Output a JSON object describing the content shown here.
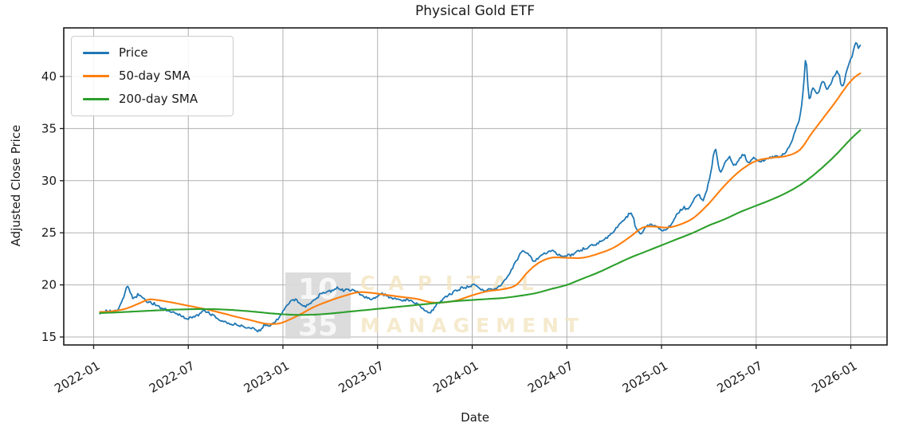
{
  "chart_data": {
    "type": "line",
    "title": "Physical Gold ETF",
    "xlabel": "Date",
    "ylabel": "Adjusted Close Price",
    "grid": true,
    "legend_position": "upper left",
    "ylim": [
      14.3,
      44.7
    ],
    "x_unit": "months_since_2022-01",
    "x_ticks": [
      {
        "label": "2022-01",
        "m": 0
      },
      {
        "label": "2022-07",
        "m": 6
      },
      {
        "label": "2023-01",
        "m": 12
      },
      {
        "label": "2023-07",
        "m": 18
      },
      {
        "label": "2024-01",
        "m": 24
      },
      {
        "label": "2024-07",
        "m": 30
      },
      {
        "label": "2025-01",
        "m": 36
      },
      {
        "label": "2025-07",
        "m": 42
      },
      {
        "label": "2026-01",
        "m": 48
      }
    ],
    "y_ticks": [
      15,
      20,
      25,
      30,
      35,
      40
    ],
    "series": [
      {
        "name": "Price",
        "color": "#1f77b4",
        "style": "jagged",
        "points": [
          [
            0.4,
            17.35
          ],
          [
            0.8,
            17.5
          ],
          [
            1.2,
            17.45
          ],
          [
            1.6,
            17.8
          ],
          [
            2.0,
            19.3
          ],
          [
            2.15,
            19.9
          ],
          [
            2.5,
            18.7
          ],
          [
            2.9,
            19.1
          ],
          [
            3.3,
            18.5
          ],
          [
            3.8,
            18.2
          ],
          [
            4.3,
            17.8
          ],
          [
            4.8,
            17.5
          ],
          [
            5.3,
            17.2
          ],
          [
            5.8,
            16.9
          ],
          [
            6.1,
            16.8
          ],
          [
            6.6,
            17.1
          ],
          [
            7.0,
            17.5
          ],
          [
            7.4,
            17.2
          ],
          [
            8.0,
            16.7
          ],
          [
            8.5,
            16.3
          ],
          [
            9.0,
            16.2
          ],
          [
            9.5,
            16.0
          ],
          [
            10.0,
            15.85
          ],
          [
            10.5,
            15.6
          ],
          [
            10.9,
            16.25
          ],
          [
            11.2,
            16.1
          ],
          [
            11.6,
            16.6
          ],
          [
            12.0,
            17.4
          ],
          [
            12.4,
            18.3
          ],
          [
            12.7,
            18.6
          ],
          [
            13.1,
            18.2
          ],
          [
            13.5,
            18.0
          ],
          [
            14.0,
            18.6
          ],
          [
            14.5,
            19.2
          ],
          [
            15.0,
            19.4
          ],
          [
            15.4,
            19.7
          ],
          [
            15.8,
            19.5
          ],
          [
            16.3,
            19.5
          ],
          [
            16.8,
            19.2
          ],
          [
            17.3,
            18.8
          ],
          [
            17.8,
            18.7
          ],
          [
            18.3,
            19.1
          ],
          [
            18.8,
            18.8
          ],
          [
            19.4,
            18.6
          ],
          [
            20.0,
            18.5
          ],
          [
            20.5,
            18.2
          ],
          [
            20.9,
            17.7
          ],
          [
            21.3,
            17.35
          ],
          [
            21.7,
            18.0
          ],
          [
            22.2,
            18.7
          ],
          [
            22.7,
            19.2
          ],
          [
            23.2,
            19.6
          ],
          [
            23.7,
            19.8
          ],
          [
            24.1,
            20.0
          ],
          [
            24.5,
            19.6
          ],
          [
            25.0,
            19.5
          ],
          [
            25.5,
            19.7
          ],
          [
            25.9,
            20.2
          ],
          [
            26.3,
            21.0
          ],
          [
            26.8,
            22.3
          ],
          [
            27.2,
            23.3
          ],
          [
            27.6,
            22.8
          ],
          [
            27.9,
            22.3
          ],
          [
            28.3,
            22.7
          ],
          [
            28.7,
            23.1
          ],
          [
            29.1,
            23.3
          ],
          [
            29.5,
            22.9
          ],
          [
            29.9,
            22.8
          ],
          [
            30.3,
            22.9
          ],
          [
            30.8,
            23.3
          ],
          [
            31.3,
            23.6
          ],
          [
            31.8,
            23.9
          ],
          [
            32.3,
            24.3
          ],
          [
            32.8,
            24.9
          ],
          [
            33.3,
            25.7
          ],
          [
            33.8,
            26.5
          ],
          [
            34.1,
            26.9
          ],
          [
            34.4,
            25.4
          ],
          [
            34.7,
            25.0
          ],
          [
            35.1,
            25.6
          ],
          [
            35.5,
            25.7
          ],
          [
            35.9,
            25.4
          ],
          [
            36.2,
            25.2
          ],
          [
            36.6,
            25.8
          ],
          [
            37.0,
            26.8
          ],
          [
            37.4,
            27.4
          ],
          [
            37.7,
            27.2
          ],
          [
            38.0,
            28.0
          ],
          [
            38.3,
            28.7
          ],
          [
            38.6,
            28.1
          ],
          [
            38.9,
            29.3
          ],
          [
            39.2,
            31.5
          ],
          [
            39.4,
            33.0
          ],
          [
            39.7,
            31.0
          ],
          [
            40.0,
            31.6
          ],
          [
            40.3,
            32.3
          ],
          [
            40.6,
            31.5
          ],
          [
            40.9,
            32.0
          ],
          [
            41.2,
            32.5
          ],
          [
            41.5,
            31.8
          ],
          [
            41.8,
            32.2
          ],
          [
            42.1,
            31.9
          ],
          [
            42.5,
            32.0
          ],
          [
            42.9,
            32.2
          ],
          [
            43.3,
            32.3
          ],
          [
            43.7,
            32.5
          ],
          [
            44.1,
            33.3
          ],
          [
            44.5,
            34.8
          ],
          [
            44.8,
            36.3
          ],
          [
            45.0,
            39.0
          ],
          [
            45.15,
            41.8
          ],
          [
            45.35,
            38.0
          ],
          [
            45.6,
            38.9
          ],
          [
            45.9,
            38.3
          ],
          [
            46.2,
            39.6
          ],
          [
            46.5,
            38.8
          ],
          [
            46.9,
            39.9
          ],
          [
            47.2,
            40.4
          ],
          [
            47.45,
            39.1
          ],
          [
            47.8,
            40.8
          ],
          [
            48.1,
            42.1
          ],
          [
            48.35,
            43.4
          ],
          [
            48.5,
            42.6
          ],
          [
            48.6,
            43.0
          ]
        ]
      },
      {
        "name": "50-day SMA",
        "color": "#ff7f0e",
        "style": "smooth",
        "points": [
          [
            0.4,
            17.4
          ],
          [
            1,
            17.45
          ],
          [
            2,
            17.7
          ],
          [
            3,
            18.3
          ],
          [
            3.5,
            18.6
          ],
          [
            4,
            18.55
          ],
          [
            5,
            18.3
          ],
          [
            6,
            18.0
          ],
          [
            7,
            17.7
          ],
          [
            8,
            17.35
          ],
          [
            9,
            16.95
          ],
          [
            10,
            16.6
          ],
          [
            10.8,
            16.3
          ],
          [
            11.5,
            16.25
          ],
          [
            12,
            16.4
          ],
          [
            13,
            17.1
          ],
          [
            14,
            17.9
          ],
          [
            15,
            18.5
          ],
          [
            16,
            19.0
          ],
          [
            16.8,
            19.3
          ],
          [
            17.5,
            19.25
          ],
          [
            18.5,
            19.05
          ],
          [
            19.5,
            18.85
          ],
          [
            20.5,
            18.65
          ],
          [
            21.3,
            18.35
          ],
          [
            22,
            18.3
          ],
          [
            23,
            18.5
          ],
          [
            24,
            19.0
          ],
          [
            25,
            19.4
          ],
          [
            26,
            19.6
          ],
          [
            26.8,
            20.0
          ],
          [
            27.5,
            21.2
          ],
          [
            28.2,
            22.1
          ],
          [
            29,
            22.6
          ],
          [
            30,
            22.6
          ],
          [
            31,
            22.6
          ],
          [
            32,
            23.0
          ],
          [
            33,
            23.6
          ],
          [
            34,
            24.6
          ],
          [
            34.8,
            25.5
          ],
          [
            35.5,
            25.6
          ],
          [
            36.3,
            25.5
          ],
          [
            37,
            25.7
          ],
          [
            38,
            26.4
          ],
          [
            39,
            27.8
          ],
          [
            39.8,
            29.2
          ],
          [
            40.5,
            30.3
          ],
          [
            41.2,
            31.2
          ],
          [
            42,
            31.9
          ],
          [
            43,
            32.2
          ],
          [
            44,
            32.4
          ],
          [
            44.8,
            33.0
          ],
          [
            45.5,
            34.5
          ],
          [
            46.2,
            35.9
          ],
          [
            47,
            37.5
          ],
          [
            47.8,
            39.2
          ],
          [
            48.3,
            40.0
          ],
          [
            48.6,
            40.3
          ]
        ]
      },
      {
        "name": "200-day SMA",
        "color": "#2ca02c",
        "style": "smooth",
        "points": [
          [
            0.4,
            17.3
          ],
          [
            1,
            17.33
          ],
          [
            2,
            17.4
          ],
          [
            3,
            17.48
          ],
          [
            4,
            17.55
          ],
          [
            5,
            17.62
          ],
          [
            6,
            17.66
          ],
          [
            7,
            17.68
          ],
          [
            8,
            17.65
          ],
          [
            9,
            17.57
          ],
          [
            10,
            17.45
          ],
          [
            11,
            17.3
          ],
          [
            12,
            17.18
          ],
          [
            13,
            17.12
          ],
          [
            14,
            17.15
          ],
          [
            15,
            17.25
          ],
          [
            16,
            17.4
          ],
          [
            17,
            17.55
          ],
          [
            18,
            17.7
          ],
          [
            19,
            17.85
          ],
          [
            20,
            18.0
          ],
          [
            21,
            18.15
          ],
          [
            22,
            18.3
          ],
          [
            23,
            18.45
          ],
          [
            24,
            18.55
          ],
          [
            25,
            18.65
          ],
          [
            26,
            18.75
          ],
          [
            27,
            18.95
          ],
          [
            28,
            19.2
          ],
          [
            29,
            19.6
          ],
          [
            30,
            20.0
          ],
          [
            31,
            20.6
          ],
          [
            32,
            21.2
          ],
          [
            33,
            21.9
          ],
          [
            34,
            22.6
          ],
          [
            35,
            23.2
          ],
          [
            36,
            23.8
          ],
          [
            37,
            24.4
          ],
          [
            38,
            25.0
          ],
          [
            39,
            25.7
          ],
          [
            40,
            26.3
          ],
          [
            41,
            27.0
          ],
          [
            42,
            27.6
          ],
          [
            43,
            28.2
          ],
          [
            44,
            28.9
          ],
          [
            45,
            29.8
          ],
          [
            46,
            31.0
          ],
          [
            47,
            32.4
          ],
          [
            48,
            34.0
          ],
          [
            48.6,
            34.85
          ]
        ]
      }
    ]
  },
  "legend": {
    "items": [
      {
        "label": "Price"
      },
      {
        "label": "50-day SMA"
      },
      {
        "label": "200-day SMA"
      }
    ]
  },
  "watermark": {
    "box_line1": "10",
    "box_line2": "35",
    "text_line1": "CAPITAL",
    "text_line2": "MANAGEMENT"
  },
  "colors": {
    "grid": "#b0b0b0",
    "axis": "#1a1a1a",
    "tick_text": "#1a1a1a",
    "watermark_box": "#d9d9d9",
    "watermark_numbers": "#fafafa",
    "watermark_text": "#f2e3bd"
  }
}
